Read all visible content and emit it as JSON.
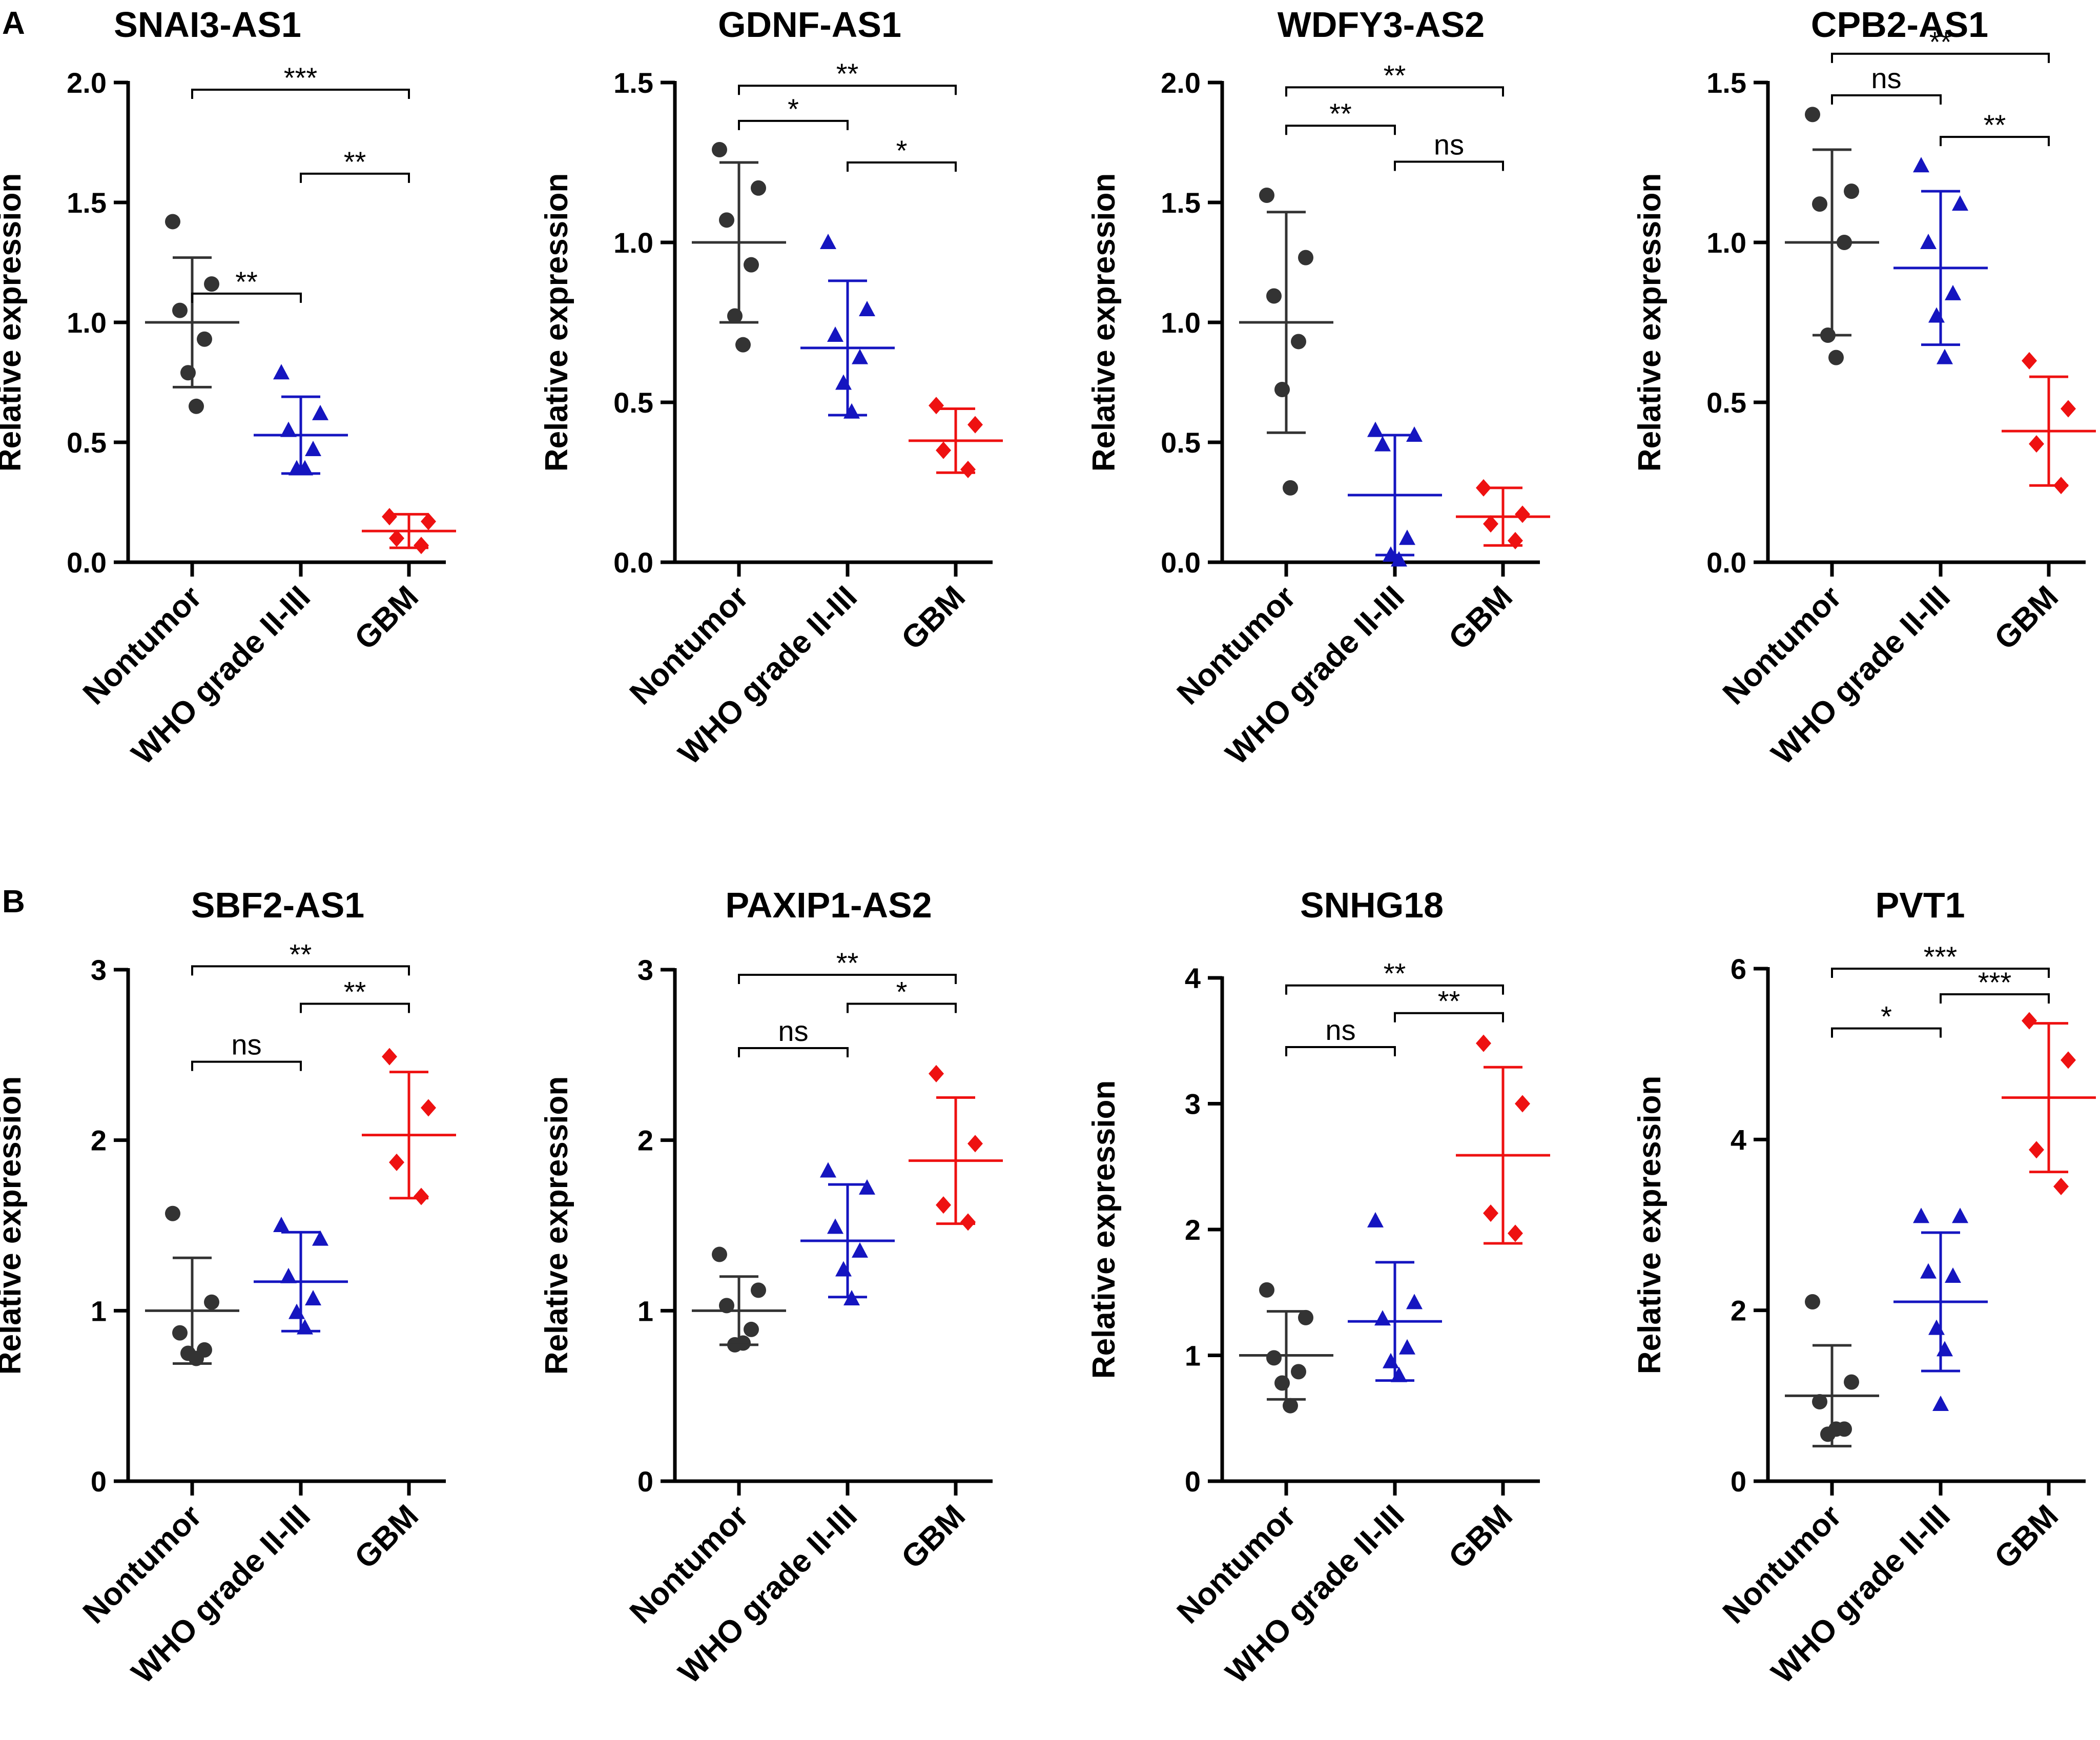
{
  "panel_labels": [
    "A",
    "B"
  ],
  "chart_data": [
    {
      "panel": "A",
      "type": "scatter",
      "title": "SNAI3-AS1",
      "ylabel": "Relative expression",
      "categories": [
        "Nontumor",
        "WHO grade II-III",
        "GBM"
      ],
      "ylim": [
        0,
        2.0
      ],
      "yticks": [
        0.0,
        0.5,
        1.0,
        1.5,
        2.0
      ],
      "tick_format": 1,
      "series": [
        {
          "name": "Nontumor",
          "color": "#333333",
          "marker": "circle",
          "points": [
            1.42,
            1.16,
            1.05,
            0.93,
            0.79,
            0.65
          ],
          "mean": 1.0,
          "sd": 0.27
        },
        {
          "name": "WHO grade II-III",
          "color": "#1515C0",
          "marker": "triangle",
          "points": [
            0.79,
            0.62,
            0.55,
            0.47,
            0.39,
            0.39
          ],
          "mean": 0.53,
          "sd": 0.16
        },
        {
          "name": "GBM",
          "color": "#EE1111",
          "marker": "diamond",
          "points": [
            0.19,
            0.17,
            0.1,
            0.07
          ],
          "mean": 0.13,
          "sd": 0.07
        }
      ],
      "comparisons": [
        {
          "a": 0,
          "b": 1,
          "label": "**",
          "y": 1.12
        },
        {
          "a": 1,
          "b": 2,
          "label": "**",
          "y": 1.62
        },
        {
          "a": 0,
          "b": 2,
          "label": "***",
          "y": 1.97
        }
      ]
    },
    {
      "panel": "A",
      "type": "scatter",
      "title": "GDNF-AS1",
      "ylabel": "Relative expression",
      "categories": [
        "Nontumor",
        "WHO grade II-III",
        "GBM"
      ],
      "ylim": [
        0,
        1.5
      ],
      "yticks": [
        0.0,
        0.5,
        1.0,
        1.5
      ],
      "tick_format": 1,
      "series": [
        {
          "name": "Nontumor",
          "color": "#333333",
          "marker": "circle",
          "points": [
            1.29,
            1.17,
            1.07,
            0.93,
            0.77,
            0.68
          ],
          "mean": 1.0,
          "sd": 0.25
        },
        {
          "name": "WHO grade II-III",
          "color": "#1515C0",
          "marker": "triangle",
          "points": [
            1.0,
            0.79,
            0.71,
            0.64,
            0.56,
            0.47
          ],
          "mean": 0.67,
          "sd": 0.21
        },
        {
          "name": "GBM",
          "color": "#EE1111",
          "marker": "diamond",
          "points": [
            0.49,
            0.43,
            0.35,
            0.29
          ],
          "mean": 0.38,
          "sd": 0.1
        }
      ],
      "comparisons": [
        {
          "a": 0,
          "b": 1,
          "label": "*",
          "y": 1.38
        },
        {
          "a": 1,
          "b": 2,
          "label": "*",
          "y": 1.25
        },
        {
          "a": 0,
          "b": 2,
          "label": "**",
          "y": 1.49
        }
      ]
    },
    {
      "panel": "A",
      "type": "scatter",
      "title": "WDFY3-AS2",
      "ylabel": "Relative expression",
      "categories": [
        "Nontumor",
        "WHO grade II-III",
        "GBM"
      ],
      "ylim": [
        0,
        2.0
      ],
      "yticks": [
        0.0,
        0.5,
        1.0,
        1.5,
        2.0
      ],
      "tick_format": 1,
      "series": [
        {
          "name": "Nontumor",
          "color": "#333333",
          "marker": "circle",
          "points": [
            1.53,
            1.27,
            1.11,
            0.92,
            0.72,
            0.31
          ],
          "mean": 1.0,
          "sd": 0.46
        },
        {
          "name": "WHO grade II-III",
          "color": "#1515C0",
          "marker": "triangle",
          "points": [
            0.55,
            0.53,
            0.49,
            0.1,
            0.03,
            0.01
          ],
          "mean": 0.28,
          "sd": 0.25
        },
        {
          "name": "GBM",
          "color": "#EE1111",
          "marker": "diamond",
          "points": [
            0.31,
            0.2,
            0.16,
            0.09
          ],
          "mean": 0.19,
          "sd": 0.12
        }
      ],
      "comparisons": [
        {
          "a": 0,
          "b": 1,
          "label": "**",
          "y": 1.82
        },
        {
          "a": 1,
          "b": 2,
          "label": "ns",
          "y": 1.67
        },
        {
          "a": 0,
          "b": 2,
          "label": "**",
          "y": 1.98
        }
      ]
    },
    {
      "panel": "A",
      "type": "scatter",
      "title": "CPB2-AS1",
      "ylabel": "Relative expression",
      "categories": [
        "Nontumor",
        "WHO grade II-III",
        "GBM"
      ],
      "ylim": [
        0,
        1.5
      ],
      "yticks": [
        0.0,
        0.5,
        1.0,
        1.5
      ],
      "tick_format": 1,
      "series": [
        {
          "name": "Nontumor",
          "color": "#333333",
          "marker": "circle",
          "points": [
            1.4,
            1.16,
            1.12,
            1.0,
            0.71,
            0.64
          ],
          "mean": 1.0,
          "sd": 0.29
        },
        {
          "name": "WHO grade II-III",
          "color": "#1515C0",
          "marker": "triangle",
          "points": [
            1.24,
            1.12,
            1.0,
            0.84,
            0.77,
            0.64
          ],
          "mean": 0.92,
          "sd": 0.24
        },
        {
          "name": "GBM",
          "color": "#EE1111",
          "marker": "diamond",
          "points": [
            0.63,
            0.48,
            0.37,
            0.24
          ],
          "mean": 0.41,
          "sd": 0.17
        }
      ],
      "comparisons": [
        {
          "a": 0,
          "b": 1,
          "label": "ns",
          "y": 1.46
        },
        {
          "a": 1,
          "b": 2,
          "label": "**",
          "y": 1.33
        },
        {
          "a": 0,
          "b": 2,
          "label": "**",
          "y": 1.59
        }
      ]
    },
    {
      "panel": "B",
      "type": "scatter",
      "title": "SBF2-AS1",
      "ylabel": "Relative expression",
      "categories": [
        "Nontumor",
        "WHO grade II-III",
        "GBM"
      ],
      "ylim": [
        0,
        3
      ],
      "yticks": [
        0,
        1,
        2,
        3
      ],
      "tick_format": 0,
      "series": [
        {
          "name": "Nontumor",
          "color": "#333333",
          "marker": "circle",
          "points": [
            1.57,
            1.05,
            0.87,
            0.77,
            0.75,
            0.72
          ],
          "mean": 1.0,
          "sd": 0.31
        },
        {
          "name": "WHO grade II-III",
          "color": "#1515C0",
          "marker": "triangle",
          "points": [
            1.5,
            1.42,
            1.2,
            1.07,
            0.99,
            0.9
          ],
          "mean": 1.17,
          "sd": 0.29
        },
        {
          "name": "GBM",
          "color": "#EE1111",
          "marker": "diamond",
          "points": [
            2.49,
            2.19,
            1.87,
            1.67
          ],
          "mean": 2.03,
          "sd": 0.37
        }
      ],
      "comparisons": [
        {
          "a": 0,
          "b": 1,
          "label": "ns",
          "y": 2.46
        },
        {
          "a": 1,
          "b": 2,
          "label": "**",
          "y": 2.8
        },
        {
          "a": 0,
          "b": 2,
          "label": "**",
          "y": 3.02
        }
      ]
    },
    {
      "panel": "B",
      "type": "scatter",
      "title": "PAXIP1-AS2",
      "ylabel": "Relative expression",
      "categories": [
        "Nontumor",
        "WHO grade II-III",
        "GBM"
      ],
      "ylim": [
        0,
        3
      ],
      "yticks": [
        0,
        1,
        2,
        3
      ],
      "tick_format": 0,
      "series": [
        {
          "name": "Nontumor",
          "color": "#333333",
          "marker": "circle",
          "points": [
            1.33,
            1.12,
            1.03,
            0.89,
            0.8,
            0.81
          ],
          "mean": 1.0,
          "sd": 0.2
        },
        {
          "name": "WHO grade II-III",
          "color": "#1515C0",
          "marker": "triangle",
          "points": [
            1.82,
            1.72,
            1.49,
            1.35,
            1.24,
            1.07
          ],
          "mean": 1.41,
          "sd": 0.33
        },
        {
          "name": "GBM",
          "color": "#EE1111",
          "marker": "diamond",
          "points": [
            2.39,
            1.98,
            1.62,
            1.52
          ],
          "mean": 1.88,
          "sd": 0.37
        }
      ],
      "comparisons": [
        {
          "a": 0,
          "b": 1,
          "label": "ns",
          "y": 2.54
        },
        {
          "a": 1,
          "b": 2,
          "label": "*",
          "y": 2.8
        },
        {
          "a": 0,
          "b": 2,
          "label": "**",
          "y": 2.97
        }
      ]
    },
    {
      "panel": "B",
      "type": "scatter",
      "title": "SNHG18",
      "ylabel": "Relative expression",
      "categories": [
        "Nontumor",
        "WHO grade II-III",
        "GBM"
      ],
      "ylim": [
        0,
        4
      ],
      "yticks": [
        0,
        1,
        2,
        3,
        4
      ],
      "tick_format": 0,
      "series": [
        {
          "name": "Nontumor",
          "color": "#333333",
          "marker": "circle",
          "points": [
            1.52,
            1.3,
            0.98,
            0.87,
            0.78,
            0.6
          ],
          "mean": 1.0,
          "sd": 0.35
        },
        {
          "name": "WHO grade II-III",
          "color": "#1515C0",
          "marker": "triangle",
          "points": [
            2.07,
            1.42,
            1.29,
            1.06,
            0.95,
            0.84
          ],
          "mean": 1.27,
          "sd": 0.47
        },
        {
          "name": "GBM",
          "color": "#EE1111",
          "marker": "diamond",
          "points": [
            3.48,
            3.0,
            2.13,
            1.97
          ],
          "mean": 2.59,
          "sd": 0.7
        }
      ],
      "comparisons": [
        {
          "a": 0,
          "b": 1,
          "label": "ns",
          "y": 3.45
        },
        {
          "a": 1,
          "b": 2,
          "label": "**",
          "y": 3.72
        },
        {
          "a": 0,
          "b": 2,
          "label": "**",
          "y": 3.94
        }
      ]
    },
    {
      "panel": "B",
      "type": "scatter",
      "title": "PVT1",
      "ylabel": "Relative expression",
      "categories": [
        "Nontumor",
        "WHO grade II-III",
        "GBM"
      ],
      "ylim": [
        0,
        6
      ],
      "yticks": [
        0,
        2,
        4,
        6
      ],
      "tick_format": 0,
      "series": [
        {
          "name": "Nontumor",
          "color": "#333333",
          "marker": "circle",
          "points": [
            2.1,
            1.16,
            0.93,
            0.61,
            0.55,
            0.61
          ],
          "mean": 1.0,
          "sd": 0.59
        },
        {
          "name": "WHO grade II-III",
          "color": "#1515C0",
          "marker": "triangle",
          "points": [
            3.1,
            3.1,
            2.45,
            2.4,
            1.79,
            1.54,
            0.9
          ],
          "mean": 2.1,
          "sd": 0.81
        },
        {
          "name": "GBM",
          "color": "#EE1111",
          "marker": "diamond",
          "points": [
            5.39,
            4.93,
            3.88,
            3.45
          ],
          "mean": 4.49,
          "sd": 0.87
        }
      ],
      "comparisons": [
        {
          "a": 0,
          "b": 1,
          "label": "*",
          "y": 5.3
        },
        {
          "a": 1,
          "b": 2,
          "label": "***",
          "y": 5.7
        },
        {
          "a": 0,
          "b": 2,
          "label": "***",
          "y": 6.0
        }
      ]
    }
  ]
}
